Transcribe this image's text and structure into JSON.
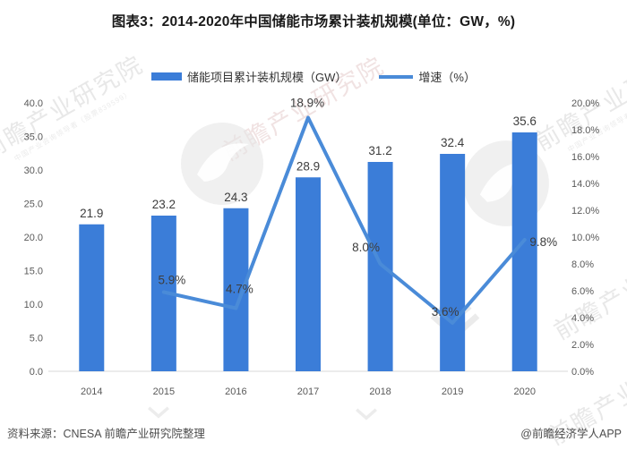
{
  "title": "图表3：2014-2020年中国储能市场累计装机规模(单位：GW，%)",
  "legend": [
    {
      "label": "储能项目累计装机规模（GW）"
    },
    {
      "label": "增速（%）"
    }
  ],
  "footer": {
    "source": "资料来源：CNESA 前瞻产业研究院整理",
    "credit": "@前瞻经济学人APP"
  },
  "watermark": {
    "text": "前瞻产业研究院",
    "subtext": "中国产业咨询领导者（股票839599）"
  },
  "colors": {
    "bar": "#3B7DD8",
    "line": "#4A8BD8",
    "axis_text": "#595959",
    "data_label": "#3d3d3d",
    "axis_line": "#d9d9d9"
  },
  "chart_data": {
    "type": "bar+line combo",
    "title": "图表3：2014-2020年中国储能市场累计装机规模(单位：GW，%)",
    "categories": [
      "2014",
      "2015",
      "2016",
      "2017",
      "2018",
      "2019",
      "2020"
    ],
    "series": [
      {
        "name": "储能项目累计装机规模（GW）",
        "type": "bar",
        "axis": "left",
        "values": [
          21.9,
          23.2,
          24.3,
          28.9,
          31.2,
          32.4,
          35.6
        ]
      },
      {
        "name": "增速（%）",
        "type": "line",
        "axis": "right",
        "values": [
          null,
          5.9,
          4.7,
          18.9,
          8.0,
          3.6,
          9.8
        ]
      }
    ],
    "left_axis": {
      "label": "GW",
      "min": 0,
      "max": 40,
      "step": 5,
      "suffix": ""
    },
    "right_axis": {
      "label": "%",
      "min": 0,
      "max": 20,
      "step": 2,
      "suffix": "%"
    },
    "grid": false,
    "legend_position": "top"
  }
}
